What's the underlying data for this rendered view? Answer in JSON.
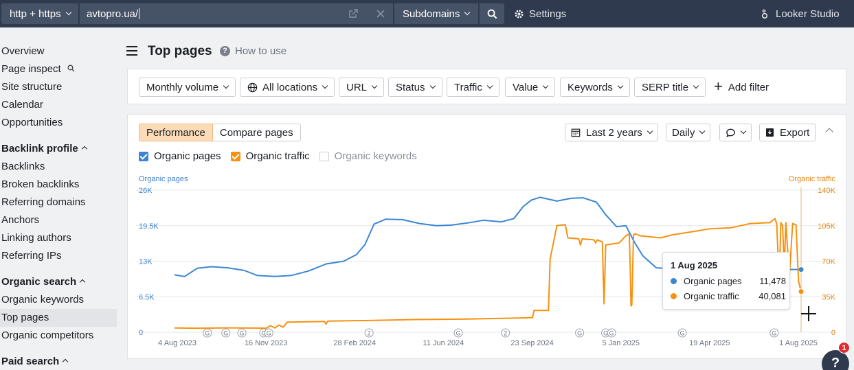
{
  "topbar": {
    "mode": "http + https",
    "url_value": "avtopro.ua/",
    "scope": "Subdomains",
    "settings": "Settings",
    "looker": "Looker Studio"
  },
  "sidebar": {
    "items": [
      {
        "label": "Overview",
        "type": "link"
      },
      {
        "label": "Page inspect",
        "type": "link",
        "icon": "search-icon"
      },
      {
        "label": "Site structure",
        "type": "link"
      },
      {
        "label": "Calendar",
        "type": "link"
      },
      {
        "label": "Opportunities",
        "type": "link"
      },
      {
        "label": "Backlink profile",
        "type": "head"
      },
      {
        "label": "Backlinks",
        "type": "link"
      },
      {
        "label": "Broken backlinks",
        "type": "link"
      },
      {
        "label": "Referring domains",
        "type": "link"
      },
      {
        "label": "Anchors",
        "type": "link"
      },
      {
        "label": "Linking authors",
        "type": "link"
      },
      {
        "label": "Referring IPs",
        "type": "link"
      },
      {
        "label": "Organic search",
        "type": "head"
      },
      {
        "label": "Organic keywords",
        "type": "link"
      },
      {
        "label": "Top pages",
        "type": "link",
        "active": true
      },
      {
        "label": "Organic competitors",
        "type": "link"
      },
      {
        "label": "Paid search",
        "type": "head"
      }
    ]
  },
  "header": {
    "title": "Top pages",
    "how_to": "How to use"
  },
  "filters": [
    "Monthly volume",
    "All locations",
    "URL",
    "Status",
    "Traffic",
    "Value",
    "Keywords",
    "SERP title"
  ],
  "add_filter": "Add filter",
  "panel": {
    "tab_performance": "Performance",
    "tab_compare": "Compare pages",
    "range": "Last 2 years",
    "interval": "Daily",
    "export": "Export",
    "legend": {
      "pages": "Organic pages",
      "traffic": "Organic traffic",
      "keywords": "Organic keywords"
    }
  },
  "colors": {
    "pages": "#3a86d6",
    "traffic": "#f7910f",
    "accent": "#fcdcb8"
  },
  "chart_data": {
    "type": "line",
    "left_axis_label": "Organic pages",
    "right_axis_label": "Organic traffic",
    "left_ticks": [
      "0",
      "6.5K",
      "13K",
      "19.5K",
      "26K"
    ],
    "right_ticks": [
      "0",
      "35K",
      "70K",
      "105K",
      "140K"
    ],
    "left_ylim": [
      0,
      26000
    ],
    "right_ylim": [
      0,
      140000
    ],
    "x_labels": [
      "4 Aug 2023",
      "16 Nov 2023",
      "28 Feb 2024",
      "11 Jun 2024",
      "23 Sep 2024",
      "5 Jan 2025",
      "19 Apr 2025",
      "1 Aug 2025"
    ],
    "x_range": [
      "2023-07-19",
      "2025-08-01"
    ],
    "grid": true,
    "series": [
      {
        "name": "Organic pages",
        "axis": "left",
        "points": [
          [
            "2023-07-19",
            10500
          ],
          [
            "2023-07-31",
            10200
          ],
          [
            "2023-08-15",
            11700
          ],
          [
            "2023-09-01",
            12000
          ],
          [
            "2023-09-20",
            11800
          ],
          [
            "2023-10-10",
            11300
          ],
          [
            "2023-10-25",
            10400
          ],
          [
            "2023-11-15",
            10200
          ],
          [
            "2023-12-05",
            10400
          ],
          [
            "2023-12-25",
            11200
          ],
          [
            "2024-01-15",
            12500
          ],
          [
            "2024-02-05",
            13000
          ],
          [
            "2024-02-20",
            14200
          ],
          [
            "2024-03-01",
            16000
          ],
          [
            "2024-03-12",
            19800
          ],
          [
            "2024-03-26",
            20700
          ],
          [
            "2024-04-15",
            20600
          ],
          [
            "2024-05-05",
            19900
          ],
          [
            "2024-05-25",
            19500
          ],
          [
            "2024-06-11",
            19600
          ],
          [
            "2024-07-01",
            20000
          ],
          [
            "2024-07-20",
            20500
          ],
          [
            "2024-08-10",
            20200
          ],
          [
            "2024-08-25",
            20800
          ],
          [
            "2024-09-05",
            23000
          ],
          [
            "2024-09-15",
            24200
          ],
          [
            "2024-09-25",
            24700
          ],
          [
            "2024-10-15",
            24000
          ],
          [
            "2024-11-01",
            24500
          ],
          [
            "2024-11-15",
            24600
          ],
          [
            "2024-12-01",
            23800
          ],
          [
            "2024-12-12",
            21500
          ],
          [
            "2024-12-25",
            19300
          ],
          [
            "2025-01-05",
            19500
          ],
          [
            "2025-01-15",
            16500
          ],
          [
            "2025-01-25",
            14000
          ],
          [
            "2025-02-10",
            11800
          ],
          [
            "2025-03-01",
            11600
          ],
          [
            "2025-03-25",
            11500
          ],
          [
            "2025-05-01",
            11400
          ],
          [
            "2025-06-01",
            11500
          ],
          [
            "2025-07-01",
            11500
          ],
          [
            "2025-08-01",
            11478
          ]
        ]
      },
      {
        "name": "Organic traffic",
        "axis": "right",
        "points": [
          [
            "2023-07-19",
            4200
          ],
          [
            "2023-08-15",
            4000
          ],
          [
            "2023-09-20",
            4300
          ],
          [
            "2023-10-20",
            4100
          ],
          [
            "2023-11-05",
            4000
          ],
          [
            "2023-11-10",
            6500
          ],
          [
            "2023-11-15",
            4200
          ],
          [
            "2023-11-20",
            7000
          ],
          [
            "2023-11-25",
            5000
          ],
          [
            "2023-11-30",
            10000
          ],
          [
            "2024-01-05",
            10500
          ],
          [
            "2024-01-13",
            10700
          ],
          [
            "2024-01-15",
            8000
          ],
          [
            "2024-01-17",
            11000
          ],
          [
            "2024-03-01",
            11500
          ],
          [
            "2024-05-01",
            12500
          ],
          [
            "2024-07-01",
            13000
          ],
          [
            "2024-09-01",
            14000
          ],
          [
            "2024-09-16",
            14500
          ],
          [
            "2024-09-18",
            21500
          ],
          [
            "2024-10-05",
            21500
          ],
          [
            "2024-10-07",
            72000
          ],
          [
            "2024-10-15",
            105000
          ],
          [
            "2024-10-25",
            106000
          ],
          [
            "2024-10-28",
            93000
          ],
          [
            "2024-11-10",
            92000
          ],
          [
            "2024-11-12",
            86000
          ],
          [
            "2024-11-14",
            92000
          ],
          [
            "2024-11-28",
            91000
          ],
          [
            "2024-11-30",
            88000
          ],
          [
            "2024-12-02",
            91000
          ],
          [
            "2024-12-08",
            89000
          ],
          [
            "2024-12-10",
            28000
          ],
          [
            "2024-12-12",
            86000
          ],
          [
            "2024-12-28",
            88000
          ],
          [
            "2025-01-05",
            95000
          ],
          [
            "2025-01-09",
            97000
          ],
          [
            "2025-01-10",
            67000
          ],
          [
            "2025-01-11",
            26000
          ],
          [
            "2025-01-12",
            27000
          ],
          [
            "2025-01-14",
            96000
          ],
          [
            "2025-01-16",
            97000
          ],
          [
            "2025-01-22",
            95000
          ],
          [
            "2025-02-15",
            93000
          ],
          [
            "2025-03-01",
            96000
          ],
          [
            "2025-04-01",
            100000
          ],
          [
            "2025-04-15",
            102000
          ],
          [
            "2025-05-10",
            103000
          ],
          [
            "2025-06-01",
            107000
          ],
          [
            "2025-06-25",
            108000
          ],
          [
            "2025-07-01",
            112000
          ],
          [
            "2025-07-03",
            107000
          ],
          [
            "2025-07-06",
            50000
          ],
          [
            "2025-07-08",
            108000
          ],
          [
            "2025-07-10",
            105000
          ],
          [
            "2025-07-12",
            65000
          ],
          [
            "2025-07-14",
            108000
          ],
          [
            "2025-07-18",
            55000
          ],
          [
            "2025-07-22",
            107000
          ],
          [
            "2025-07-26",
            106000
          ],
          [
            "2025-07-29",
            50000
          ],
          [
            "2025-08-01",
            40081
          ]
        ]
      }
    ],
    "annotations": [
      {
        "date": "2023-08-27",
        "label": "G"
      },
      {
        "date": "2023-09-18",
        "label": "G"
      },
      {
        "date": "2023-10-07",
        "label": "G"
      },
      {
        "date": "2023-11-02",
        "label": "G"
      },
      {
        "date": "2023-11-08",
        "label": "G"
      },
      {
        "date": "2024-03-06",
        "label": "2"
      },
      {
        "date": "2024-06-20",
        "label": "G"
      },
      {
        "date": "2024-08-15",
        "label": "2"
      },
      {
        "date": "2024-11-11",
        "label": "G"
      },
      {
        "date": "2024-12-12",
        "label": "G"
      },
      {
        "date": "2024-12-19",
        "label": "G"
      },
      {
        "date": "2025-03-13",
        "label": "G"
      },
      {
        "date": "2025-06-30",
        "label": "G"
      }
    ],
    "tooltip": {
      "date": "1 Aug 2025",
      "rows": [
        {
          "name": "Organic pages",
          "value": "11,478"
        },
        {
          "name": "Organic traffic",
          "value": "40,081"
        }
      ]
    }
  },
  "help": {
    "label": "?",
    "badge": "1"
  }
}
